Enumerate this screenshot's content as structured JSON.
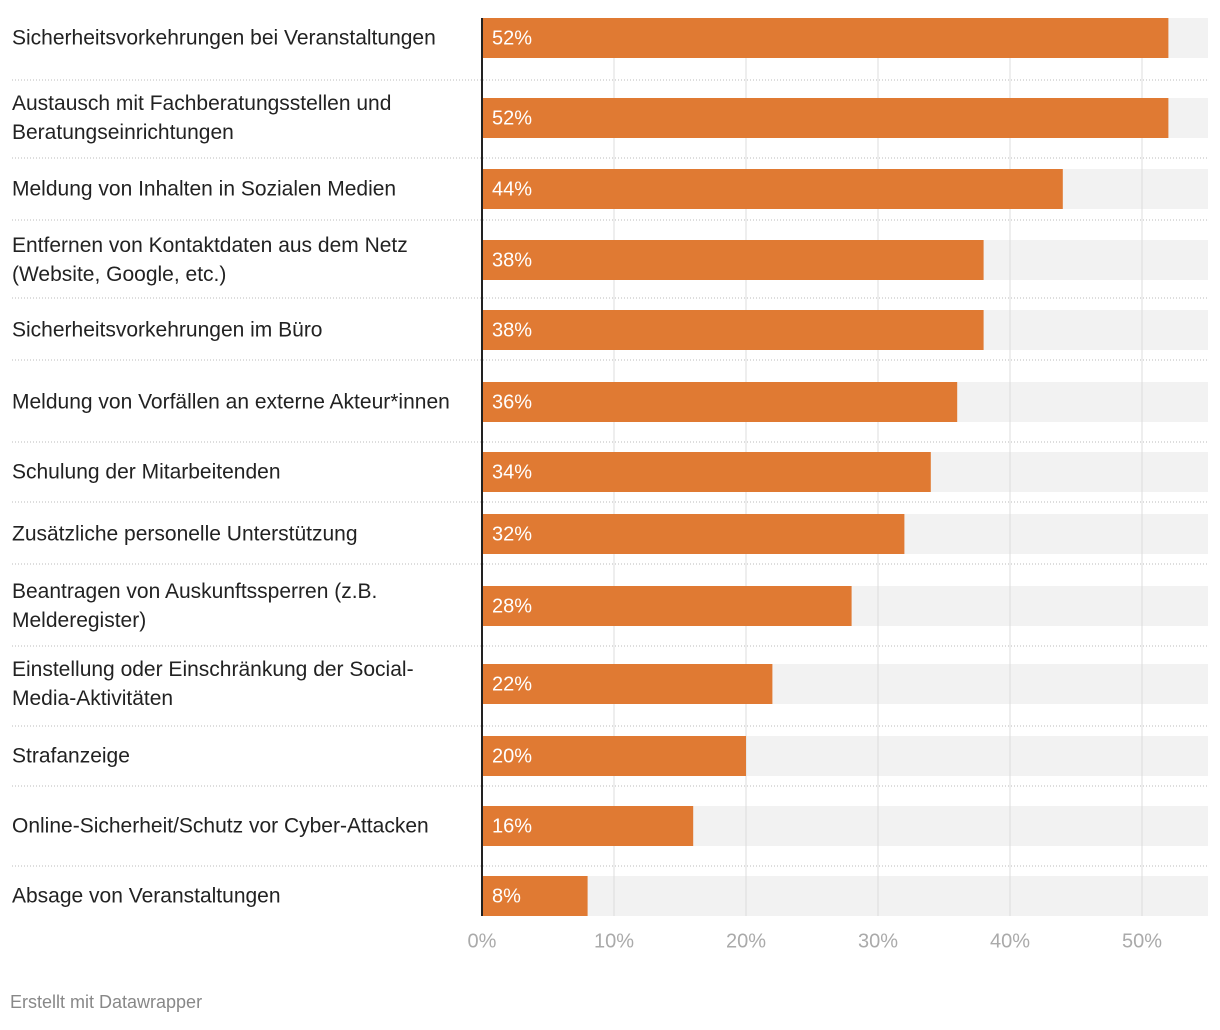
{
  "chart_data": {
    "type": "bar",
    "orientation": "horizontal",
    "categories": [
      "Sicherheitsvorkehrungen bei Veranstaltungen",
      "Austausch mit Fachberatungsstellen und Beratungseinrichtungen",
      "Meldung von Inhalten in Sozialen Medien",
      "Entfernen von Kontaktdaten aus dem Netz (Website, Google, etc.)",
      "Sicherheitsvorkehrungen im Büro",
      "Meldung von Vorfällen an externe Akteur*innen",
      "Schulung der Mitarbeitenden",
      "Zusätzliche personelle Unterstützung",
      "Beantragen von Auskunftssperren (z.B. Melderegister)",
      "Einstellung oder Einschränkung der Social-Media-Aktivitäten",
      "Strafanzeige",
      "Online-Sicherheit/Schutz vor Cyber-Attacken",
      "Absage von Veranstaltungen"
    ],
    "values": [
      52,
      52,
      44,
      38,
      38,
      36,
      34,
      32,
      28,
      22,
      20,
      16,
      8
    ],
    "value_labels": [
      "52%",
      "52%",
      "44%",
      "38%",
      "38%",
      "36%",
      "34%",
      "32%",
      "28%",
      "22%",
      "20%",
      "16%",
      "8%"
    ],
    "color": "#e07a33",
    "xlim": [
      0,
      55
    ],
    "xticks": [
      {
        "value": 0,
        "label": "0%"
      },
      {
        "value": 10,
        "label": "10%"
      },
      {
        "value": 20,
        "label": "20%"
      },
      {
        "value": 30,
        "label": "30%"
      },
      {
        "value": 40,
        "label": "40%"
      },
      {
        "value": 50,
        "label": "50%"
      }
    ],
    "grid": true,
    "footer": "Erstellt mit Datawrapper"
  }
}
